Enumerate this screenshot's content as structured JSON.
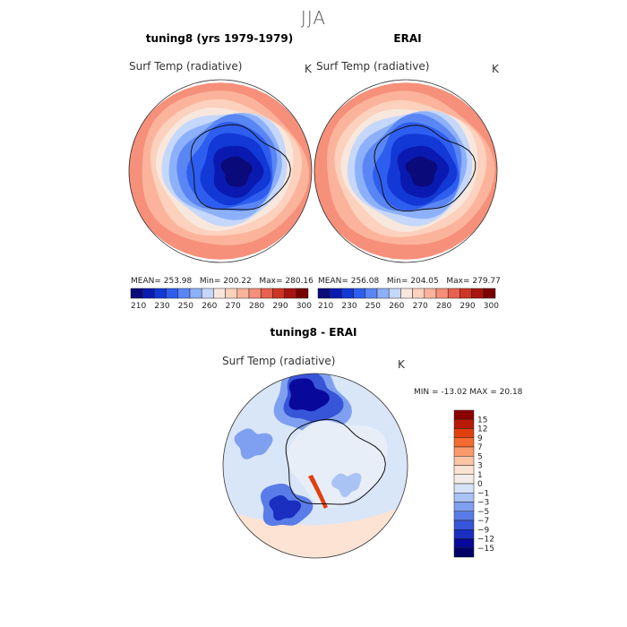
{
  "figure": {
    "title": "JJA",
    "units": "K"
  },
  "panels": [
    {
      "title": "tuning8 (yrs 1979-1979)",
      "variable": "Surf Temp (radiative)",
      "units": "K",
      "stats": {
        "mean_label": "MEAN=",
        "mean": "253.98",
        "min_label": "Min=",
        "min": "200.22",
        "max_label": "Max=",
        "max": "280.16"
      }
    },
    {
      "title": "ERAI",
      "variable": "Surf Temp (radiative)",
      "units": "K",
      "stats": {
        "mean_label": "MEAN=",
        "mean": "256.08",
        "min_label": "Min=",
        "min": "204.05",
        "max_label": "Max=",
        "max": "279.77"
      }
    },
    {
      "title": "tuning8 - ERAI",
      "variable": "Surf Temp (radiative)",
      "units": "K",
      "minmax_text": "MIN = -13.02 MAX =  20.18"
    }
  ],
  "chart_data": [
    {
      "type": "heatmap",
      "title": "tuning8 (yrs 1979-1979)",
      "variable": "Surf Temp (radiative)",
      "projection": "south polar stereographic",
      "units": "K",
      "mean": 253.98,
      "min": 200.22,
      "max": 280.16,
      "colorbar_levels": [
        210,
        220,
        230,
        240,
        250,
        255,
        260,
        265,
        270,
        275,
        280,
        285,
        290,
        295,
        300
      ],
      "colorbar_tick_labels": [
        "210",
        "230",
        "250",
        "260",
        "270",
        "280",
        "290",
        "300"
      ],
      "colors": [
        "#0a0a7a",
        "#0a1ab0",
        "#1238d6",
        "#2e5ef0",
        "#5a86f5",
        "#8db0fa",
        "#c5d7fb",
        "#f7e7dc",
        "#fcd1bd",
        "#fbb49b",
        "#f6907a",
        "#e8604f",
        "#cf3524",
        "#a8140f",
        "#7a0000"
      ]
    },
    {
      "type": "heatmap",
      "title": "ERAI",
      "variable": "Surf Temp (radiative)",
      "projection": "south polar stereographic",
      "units": "K",
      "mean": 256.08,
      "min": 204.05,
      "max": 279.77,
      "colorbar_levels": [
        210,
        220,
        230,
        240,
        250,
        255,
        260,
        265,
        270,
        275,
        280,
        285,
        290,
        295,
        300
      ],
      "colorbar_tick_labels": [
        "210",
        "230",
        "250",
        "260",
        "270",
        "280",
        "290",
        "300"
      ],
      "colors": [
        "#0a0a7a",
        "#0a1ab0",
        "#1238d6",
        "#2e5ef0",
        "#5a86f5",
        "#8db0fa",
        "#c5d7fb",
        "#f7e7dc",
        "#fcd1bd",
        "#fbb49b",
        "#f6907a",
        "#e8604f",
        "#cf3524",
        "#a8140f",
        "#7a0000"
      ]
    },
    {
      "type": "heatmap",
      "title": "tuning8 - ERAI",
      "variable": "Surf Temp (radiative)",
      "projection": "south polar stereographic",
      "units": "K",
      "min": -13.02,
      "max": 20.18,
      "colorbar_levels": [
        15,
        12,
        9,
        7,
        5,
        3,
        1,
        0,
        -1,
        -3,
        -5,
        -7,
        -9,
        -12,
        -15
      ],
      "colorbar_tick_labels": [
        "15",
        "12",
        "9",
        "7",
        "5",
        "3",
        "1",
        "0",
        "−1",
        "−3",
        "−5",
        "−7",
        "−9",
        "−12",
        "−15"
      ],
      "colors": [
        "#8a0000",
        "#b81a05",
        "#e0400f",
        "#f56a2e",
        "#fa9a6a",
        "#fcc5a8",
        "#fde3d3",
        "#f4ece6",
        "#d6e2f6",
        "#a9c3f5",
        "#7fa0f0",
        "#5a7ce8",
        "#3755d8",
        "#1a2fc0",
        "#08089a",
        "#000066"
      ]
    }
  ]
}
